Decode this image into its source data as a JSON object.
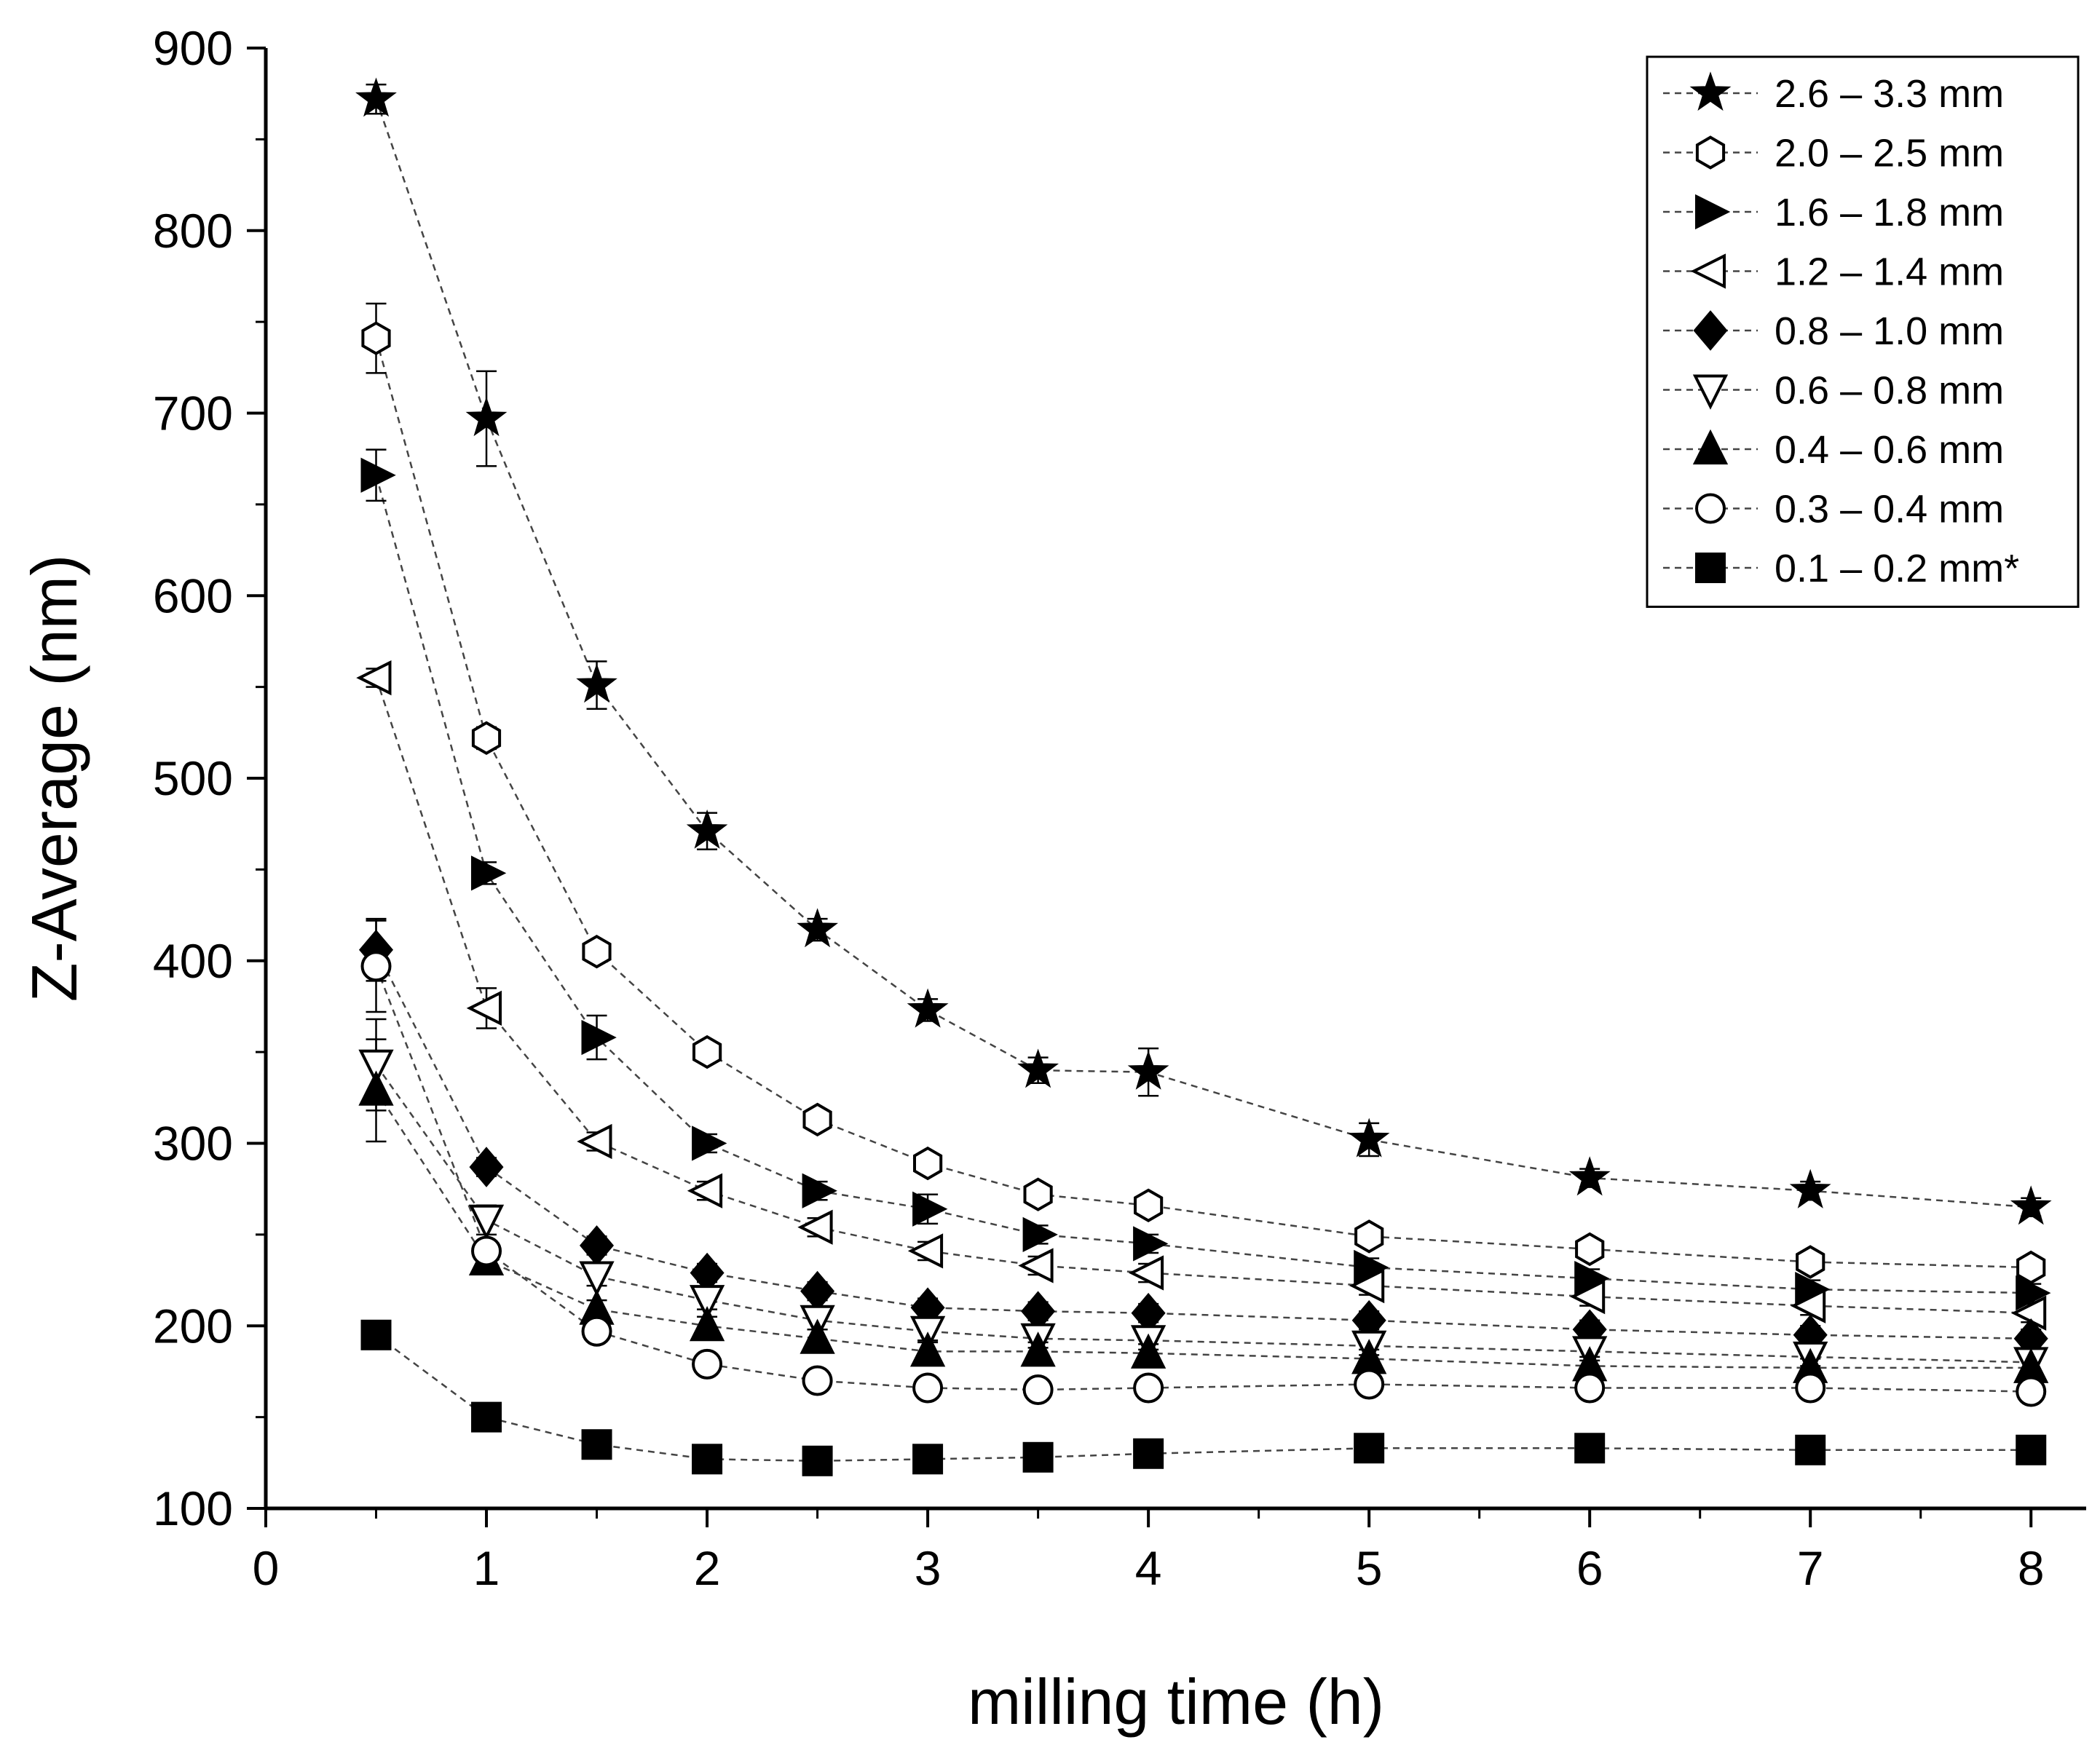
{
  "chart_data": {
    "type": "scatter",
    "title": "",
    "xlabel": "milling time (h)",
    "ylabel": "Z-Average (nm)",
    "xlim": [
      0,
      8.25
    ],
    "ylim": [
      100,
      900
    ],
    "xticks": [
      0,
      1,
      2,
      3,
      4,
      5,
      6,
      7,
      8
    ],
    "xtick_labels": [
      "0",
      "1",
      "2",
      "3",
      "4",
      "5",
      "6",
      "7",
      "8"
    ],
    "yticks": [
      100,
      200,
      300,
      400,
      500,
      600,
      700,
      800,
      900
    ],
    "ytick_labels": [
      "100",
      "200",
      "300",
      "400",
      "500",
      "600",
      "700",
      "800",
      "900"
    ],
    "legend_position": "top-right",
    "line_style": "dashed",
    "x": [
      0.5,
      1,
      1.5,
      2,
      2.5,
      3,
      3.5,
      4,
      5,
      6,
      7,
      8
    ],
    "series": [
      {
        "name": "2.6 – 3.3 mm",
        "marker": "star",
        "fill": "filled",
        "values": [
          872,
          697,
          551,
          471,
          417,
          373,
          340,
          339,
          302,
          281,
          274,
          265
        ],
        "errors": [
          8,
          26,
          13,
          10,
          6,
          6,
          7,
          13,
          9,
          5,
          5,
          5
        ]
      },
      {
        "name": "2.0 – 2.5 mm",
        "marker": "hexagon",
        "fill": "open",
        "values": [
          741,
          522,
          405,
          350,
          313,
          289,
          272,
          266,
          249,
          242,
          235,
          232
        ],
        "errors": [
          19,
          6,
          5,
          5,
          5,
          5,
          5,
          5,
          5,
          5,
          5,
          5
        ]
      },
      {
        "name": "1.6 – 1.8 mm",
        "marker": "triangle-right",
        "fill": "filled",
        "values": [
          666,
          448,
          358,
          300,
          274,
          264,
          250,
          245,
          232,
          226,
          220,
          218
        ],
        "errors": [
          14,
          6,
          12,
          5,
          5,
          8,
          5,
          5,
          5,
          5,
          5,
          5
        ]
      },
      {
        "name": "1.2 – 1.4 mm",
        "marker": "triangle-left",
        "fill": "open",
        "values": [
          555,
          374,
          301,
          274,
          254,
          241,
          233,
          229,
          222,
          216,
          211,
          207
        ],
        "errors": [
          5,
          11,
          5,
          5,
          5,
          5,
          5,
          5,
          5,
          5,
          5,
          5
        ]
      },
      {
        "name": "0.8 – 1.0 mm",
        "marker": "diamond",
        "fill": "filled",
        "values": [
          406,
          287,
          244,
          229,
          219,
          210,
          208,
          207,
          203,
          198,
          195,
          193
        ],
        "errors": [
          17,
          5,
          5,
          5,
          5,
          5,
          5,
          5,
          5,
          5,
          5,
          5
        ]
      },
      {
        "name": "0.6 – 0.8 mm",
        "marker": "triangle-down",
        "fill": "open",
        "values": [
          343,
          258,
          227,
          214,
          203,
          197,
          193,
          192,
          189,
          186,
          183,
          180
        ],
        "errors": [
          25,
          8,
          5,
          5,
          5,
          5,
          5,
          5,
          5,
          5,
          5,
          5
        ]
      },
      {
        "name": "0.4 – 0.6 mm",
        "marker": "triangle-up",
        "fill": "filled",
        "values": [
          329,
          236,
          209,
          200,
          193,
          186,
          186,
          185,
          182,
          178,
          177,
          177
        ],
        "errors": [
          28,
          6,
          5,
          5,
          5,
          5,
          5,
          5,
          5,
          5,
          5,
          5
        ]
      },
      {
        "name": "0.3 – 0.4 mm",
        "marker": "circle",
        "fill": "open",
        "values": [
          397,
          241,
          197,
          179,
          170,
          166,
          165,
          166,
          168,
          166,
          166,
          164
        ],
        "errors": [
          25,
          5,
          5,
          5,
          5,
          5,
          5,
          5,
          5,
          5,
          5,
          5
        ]
      },
      {
        "name": "0.1 – 0.2 mm*",
        "marker": "square",
        "fill": "filled",
        "values": [
          195,
          150,
          135,
          127,
          126,
          127,
          128,
          130,
          133,
          133,
          132,
          132
        ],
        "errors": [
          0,
          0,
          0,
          0,
          0,
          0,
          0,
          0,
          0,
          0,
          0,
          0
        ]
      }
    ]
  }
}
